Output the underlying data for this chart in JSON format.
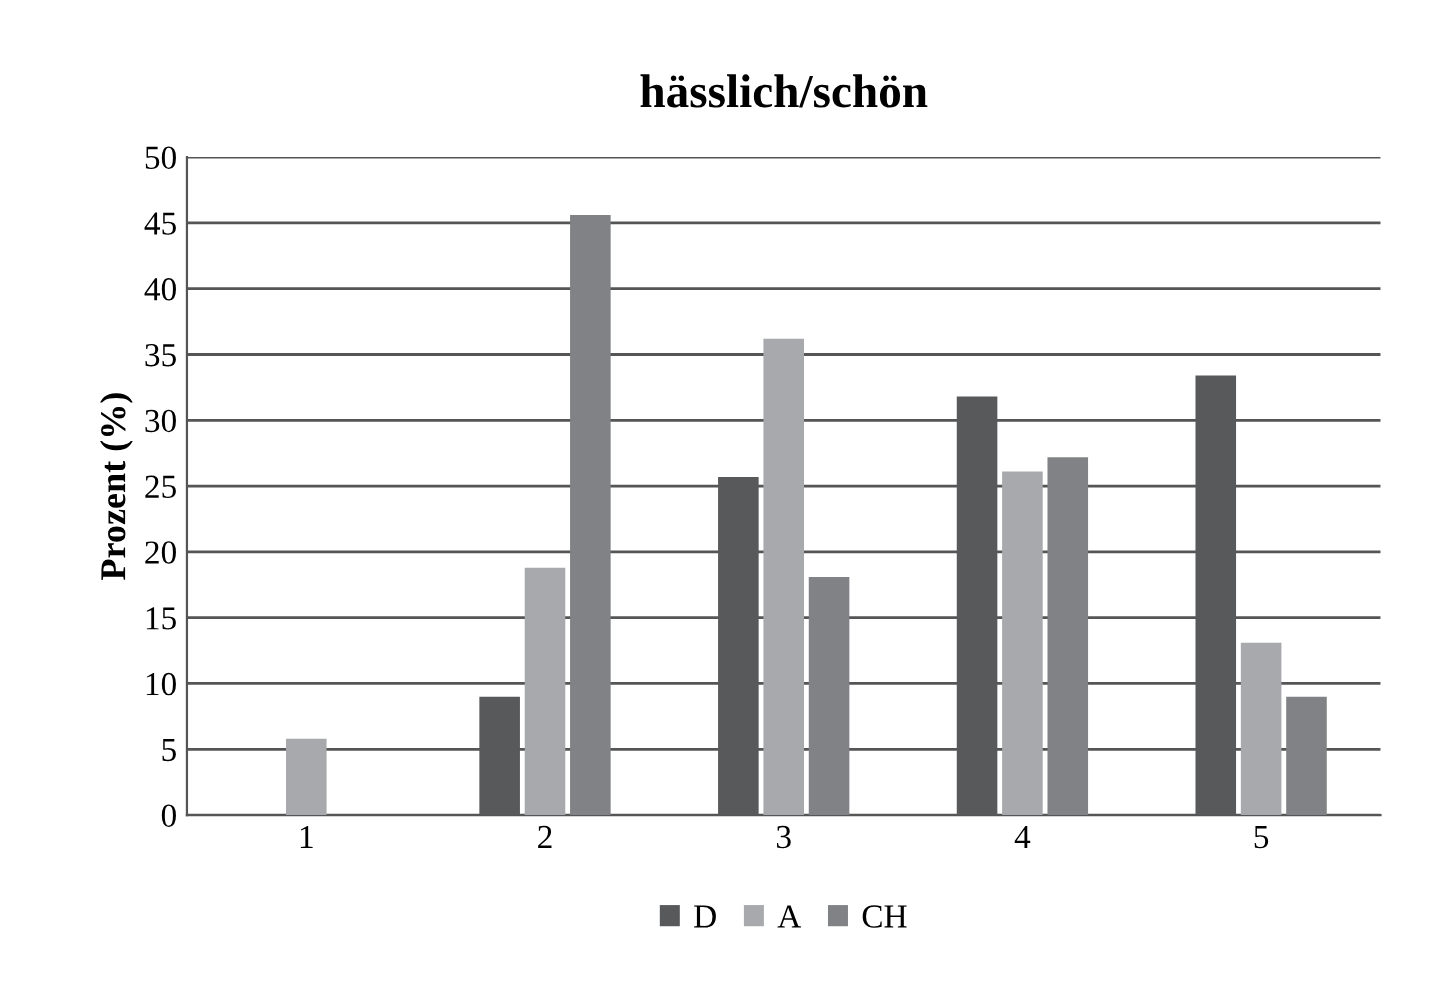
{
  "chart_data": {
    "type": "bar",
    "title": "hässlich/schön",
    "ylabel": "Prozent (%)",
    "categories": [
      "1",
      "2",
      "3",
      "4",
      "5"
    ],
    "series": [
      {
        "name": "D",
        "color": "#58595b",
        "values": [
          0,
          9.0,
          25.7,
          31.8,
          33.4
        ]
      },
      {
        "name": "A",
        "color": "#a7a9ac",
        "values": [
          5.8,
          18.8,
          36.2,
          26.1,
          13.1
        ]
      },
      {
        "name": "CH",
        "color": "#808285",
        "values": [
          0,
          45.6,
          18.1,
          27.2,
          9.0
        ]
      }
    ],
    "ylim": [
      0,
      50
    ],
    "yticks": [
      0,
      5,
      10,
      15,
      20,
      25,
      30,
      35,
      40,
      45,
      50
    ],
    "grid": "y",
    "legend": "bottom"
  }
}
